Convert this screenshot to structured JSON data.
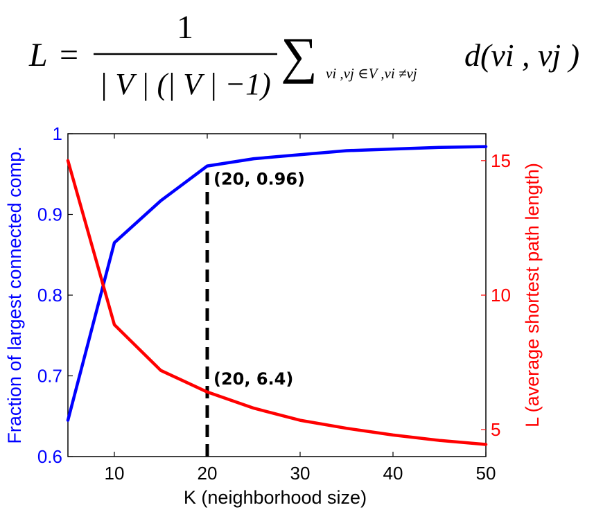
{
  "formula": {
    "lhs": "L",
    "equals": "=",
    "numerator": "1",
    "denominator": "| V | (| V | −1)",
    "sigma": "∑",
    "subscript": "vi ,vj ∈V ,vi ≠vj",
    "summand": "d(vi , vj )"
  },
  "chart_data": {
    "type": "line",
    "xlabel": "K (neighborhood size)",
    "ylabel_left": "Fraction of largest connected comp.",
    "ylabel_right": "L (average shortest path length)",
    "xlim": [
      5,
      50
    ],
    "ylim_left": [
      0.6,
      1.0
    ],
    "ylim_right": [
      4,
      16
    ],
    "x_ticks": [
      10,
      20,
      30,
      40,
      50
    ],
    "y_ticks_left": [
      0.6,
      0.7,
      0.8,
      0.9,
      1
    ],
    "y_tick_labels_left": [
      "0.6",
      "0.7",
      "0.8",
      "0.9",
      "1"
    ],
    "y_ticks_right": [
      5,
      10,
      15
    ],
    "grid": false,
    "series": [
      {
        "axis": "left",
        "color": "#0000ff",
        "x": [
          5,
          10,
          15,
          20,
          25,
          30,
          35,
          40,
          45,
          50
        ],
        "y": [
          0.645,
          0.865,
          0.917,
          0.96,
          0.969,
          0.974,
          0.979,
          0.981,
          0.983,
          0.984
        ]
      },
      {
        "axis": "right",
        "color": "#ff0000",
        "x": [
          5,
          10,
          15,
          20,
          25,
          30,
          35,
          40,
          45,
          50
        ],
        "y": [
          15.0,
          8.9,
          7.2,
          6.4,
          5.8,
          5.35,
          5.05,
          4.8,
          4.6,
          4.45
        ]
      }
    ],
    "marker_line": {
      "x": 20,
      "style": "dashed",
      "color": "#000000"
    },
    "annotations": [
      {
        "text": "(20, 0.96)",
        "x": 20,
        "y": 0.96,
        "axis": "left"
      },
      {
        "text": "(20, 6.4)",
        "x": 20,
        "y": 6.4,
        "axis": "right"
      }
    ]
  }
}
